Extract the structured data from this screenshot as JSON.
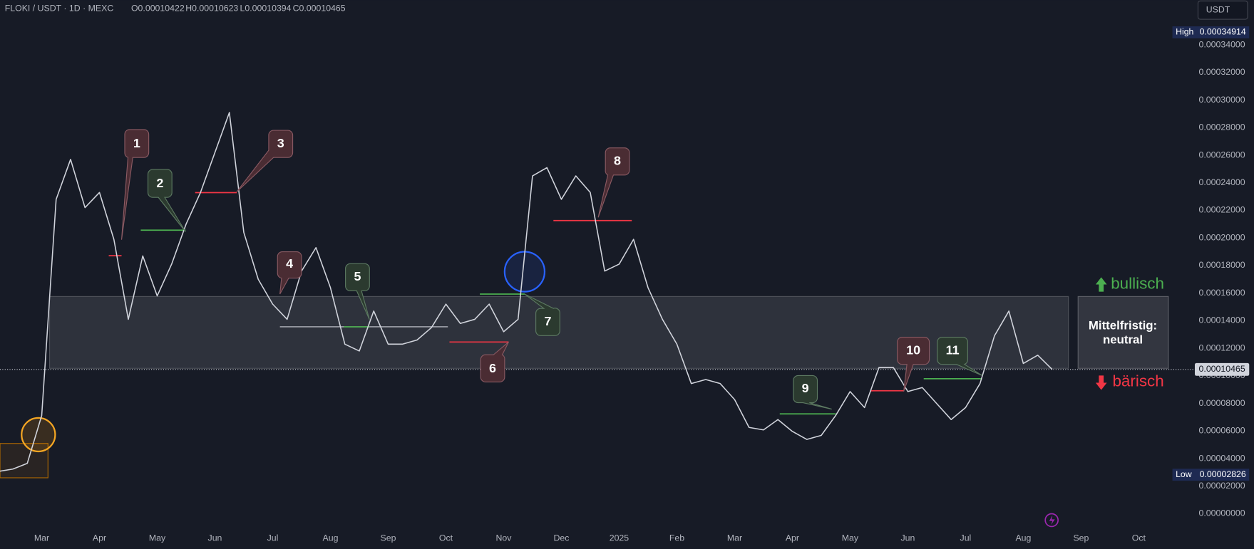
{
  "header": {
    "symbol": "FLOKI / USDT · 1D · MEXC",
    "open": "O0.00010422",
    "high": "H0.00010623",
    "low": "L0.00010394",
    "close": "C0.00010465"
  },
  "currency": "USDT",
  "annotations": [
    "1",
    "2",
    "3",
    "4",
    "5",
    "6",
    "7",
    "8",
    "9",
    "10",
    "11"
  ],
  "zone": {
    "up": "bullisch",
    "down": "bärisch",
    "box": [
      "Mittelfristig:",
      "neutral"
    ]
  },
  "chart_data": {
    "type": "line",
    "color": "#d1d4dc",
    "categories": [
      null,
      null,
      null,
      "Mar",
      null,
      null,
      null,
      "Apr",
      null,
      null,
      null,
      "May",
      null,
      null,
      null,
      "Jun",
      null,
      null,
      null,
      "Jul",
      null,
      null,
      null,
      "Aug",
      null,
      null,
      null,
      "Sep",
      null,
      null,
      null,
      "Oct",
      null,
      null,
      null,
      "Nov",
      null,
      null,
      null,
      "Dec",
      null,
      null,
      null,
      "2025",
      null,
      null,
      null,
      "Feb",
      null,
      null,
      null,
      "Mar",
      null,
      null,
      null,
      "Apr",
      null,
      null,
      null,
      "May",
      null,
      null,
      null,
      "Jun",
      null,
      null,
      null,
      "Jul",
      null,
      null,
      null,
      "Aug",
      null,
      null,
      null,
      "Sep",
      null,
      null,
      null,
      "Oct"
    ],
    "values": [
      3.07e-05,
      3.24e-05,
      3.65e-05,
      7.12e-05,
      0.000228,
      0.000257,
      0.000222,
      0.000233,
      0.000199,
      0.000141,
      0.000187,
      0.000158,
      0.000181,
      0.00021,
      0.000233,
      0.000262,
      0.000291,
      0.000204,
      0.00017,
      0.000152,
      0.000141,
      0.000176,
      0.000193,
      0.000164,
      0.000123,
      0.000118,
      0.000147,
      0.000123,
      0.000123,
      0.000126,
      0.000135,
      0.000152,
      0.000138,
      0.000141,
      0.000152,
      0.000132,
      0.000141,
      0.000245,
      0.000251,
      0.000228,
      0.000245,
      0.000233,
      0.000176,
      0.000181,
      0.000199,
      0.000164,
      0.000141,
      0.000123,
      9.44e-05,
      9.73e-05,
      9.44e-05,
      8.28e-05,
      6.26e-05,
      6.08e-05,
      6.83e-05,
      5.97e-05,
      5.39e-05,
      5.68e-05,
      7.12e-05,
      8.86e-05,
      7.7e-05,
      0.000106,
      0.000106,
      8.86e-05,
      9.15e-05,
      7.99e-05,
      6.83e-05,
      7.7e-05,
      9.44e-05,
      0.000129,
      0.000147,
      0.000109,
      0.000115,
      0.00010465,
      null,
      null,
      null,
      null,
      null,
      null
    ],
    "ylim": [
      -2.55e-05,
      0.0003725
    ],
    "yticks": [
      {
        "value": 0,
        "label": "0.00000000"
      },
      {
        "value": 2e-05,
        "label": "0.00002000"
      },
      {
        "value": 4e-05,
        "label": "0.00004000"
      },
      {
        "value": 6e-05,
        "label": "0.00006000"
      },
      {
        "value": 8e-05,
        "label": "0.00008000"
      },
      {
        "value": 0.0001,
        "label": "0.00010000"
      },
      {
        "value": 0.00012,
        "label": "0.00012000"
      },
      {
        "value": 0.00014,
        "label": "0.00014000"
      },
      {
        "value": 0.00016,
        "label": "0.00016000"
      },
      {
        "value": 0.00018,
        "label": "0.00018000"
      },
      {
        "value": 0.0002,
        "label": "0.00020000"
      },
      {
        "value": 0.00022,
        "label": "0.00022000"
      },
      {
        "value": 0.00024,
        "label": "0.00024000"
      },
      {
        "value": 0.00026,
        "label": "0.00026000"
      },
      {
        "value": 0.00028,
        "label": "0.00028000"
      },
      {
        "value": 0.0003,
        "label": "0.00030000"
      },
      {
        "value": 0.00032,
        "label": "0.00032000"
      },
      {
        "value": 0.00034,
        "label": "0.00034000"
      }
    ],
    "grid": false,
    "price_markers": [
      {
        "name": "High",
        "value": 0.00034914,
        "label": "0.00034914"
      },
      {
        "name": "Low",
        "value": 2.826e-05,
        "label": "0.00002826"
      }
    ],
    "last_price": {
      "value": 0.00010465,
      "label": "0.00010465"
    }
  }
}
